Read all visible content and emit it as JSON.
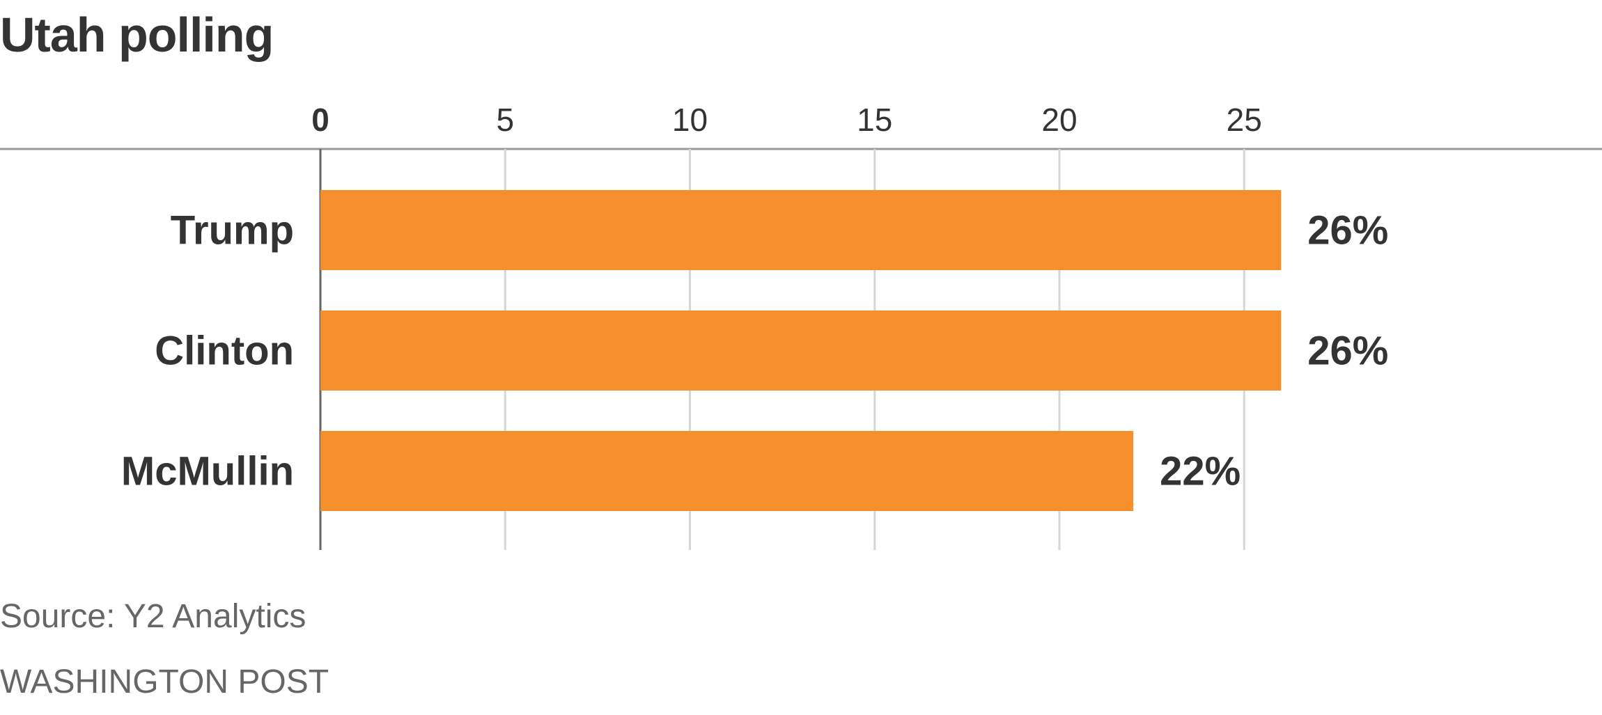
{
  "chart_data": {
    "type": "bar",
    "orientation": "horizontal",
    "title": "Utah polling",
    "categories": [
      "Trump",
      "Clinton",
      "McMullin"
    ],
    "values": [
      26,
      26,
      22
    ],
    "value_labels": [
      "26%",
      "26%",
      "22%"
    ],
    "xlim": [
      0,
      30
    ],
    "xticks": [
      0,
      5,
      10,
      15,
      20,
      25
    ],
    "tick_labels": [
      "0",
      "5",
      "10",
      "15",
      "20",
      "25"
    ],
    "grid": true,
    "bar_color": "#f58f2e",
    "axis_position": "top"
  },
  "footer": {
    "source": "Source: Y2 Analytics",
    "credit": "WASHINGTON POST"
  }
}
